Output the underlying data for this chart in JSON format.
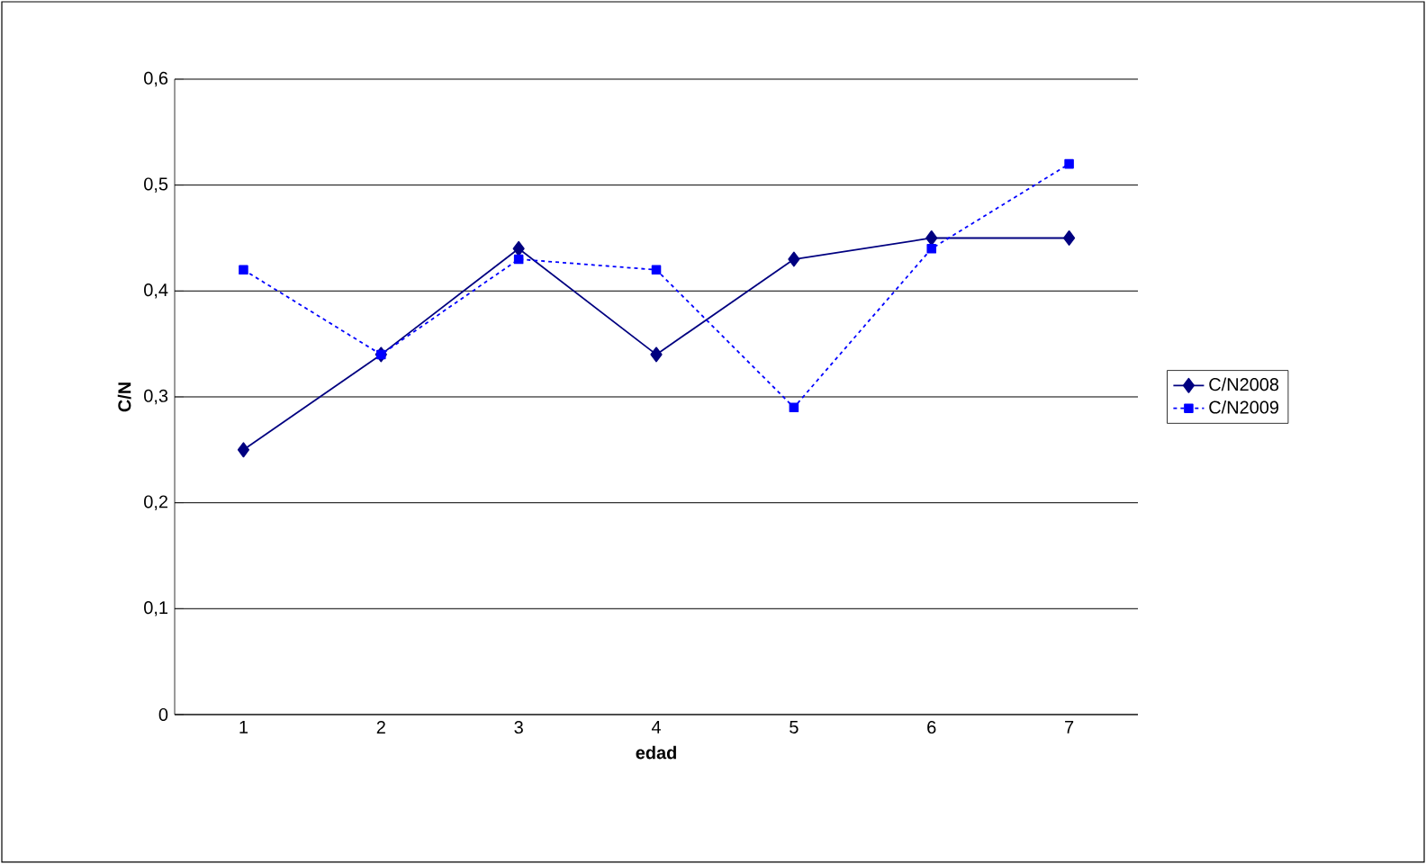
{
  "chart_data": {
    "type": "line",
    "xlabel": "edad",
    "ylabel": "C/N",
    "categories": [
      "1",
      "2",
      "3",
      "4",
      "5",
      "6",
      "7"
    ],
    "series": [
      {
        "name": "C/N2008",
        "color": "#000080",
        "marker": "diamond",
        "line_style": "solid",
        "values": [
          0.25,
          0.34,
          0.44,
          0.34,
          0.43,
          0.45,
          0.45
        ]
      },
      {
        "name": "C/N2009",
        "color": "#0000ff",
        "marker": "square",
        "line_style": "dashed",
        "values": [
          0.42,
          0.34,
          0.43,
          0.42,
          0.29,
          0.44,
          0.52
        ]
      }
    ],
    "ylim": [
      0,
      0.6
    ],
    "yticks": [
      0,
      {
        "value": 0.1,
        "label": "0,1"
      },
      {
        "value": 0.2,
        "label": "0,2"
      },
      {
        "value": 0.3,
        "label": "0,3"
      },
      {
        "value": 0.4,
        "label": "0,4"
      },
      {
        "value": 0.5,
        "label": "0,5"
      },
      {
        "value": 0.6,
        "label": "0,6"
      }
    ],
    "grid": "y",
    "legend": "right"
  }
}
